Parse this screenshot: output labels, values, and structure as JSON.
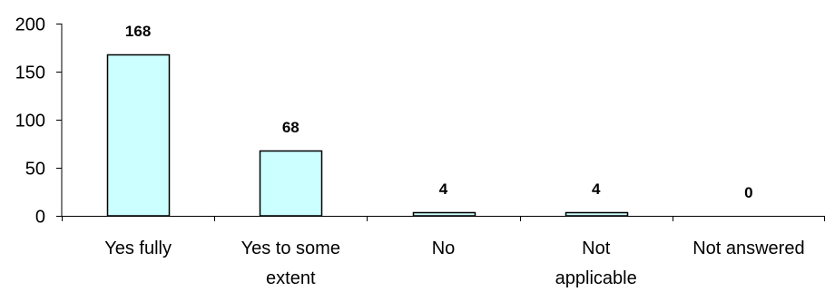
{
  "chart_data": {
    "type": "bar",
    "categories": [
      "Yes fully",
      "Yes to some extent",
      "No",
      "Not applicable",
      "Not answered"
    ],
    "category_lines": [
      [
        "Yes fully"
      ],
      [
        "Yes to some",
        "extent"
      ],
      [
        "No"
      ],
      [
        "Not",
        "applicable"
      ],
      [
        "Not answered"
      ]
    ],
    "values": [
      168,
      68,
      4,
      4,
      0
    ],
    "data_labels": [
      "168",
      "68",
      "4",
      "4",
      "0"
    ],
    "yticks": [
      0,
      50,
      100,
      150,
      200
    ],
    "ylim": [
      0,
      200
    ],
    "title": "",
    "xlabel": "",
    "ylabel": "",
    "grid": false,
    "legend": "none",
    "bar_fill": "#ccffff",
    "bar_stroke": "#000000"
  }
}
